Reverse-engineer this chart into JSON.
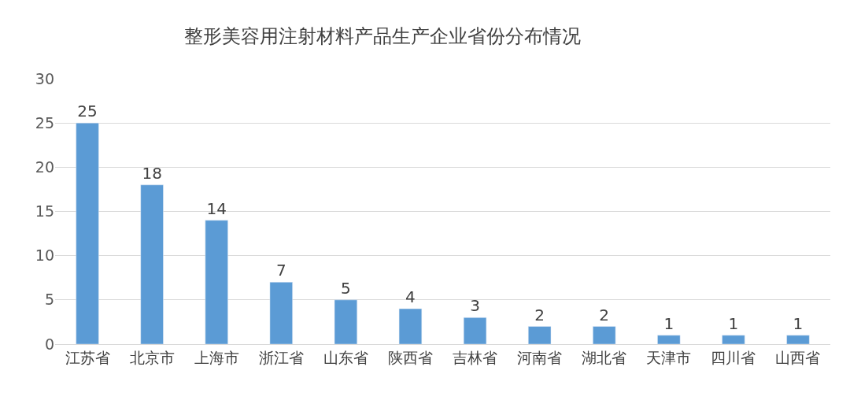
{
  "chart_data": {
    "type": "bar",
    "title": "整形美容用注射材料产品生产企业省份分布情况",
    "categories": [
      "江苏省",
      "北京市",
      "上海市",
      "浙江省",
      "山东省",
      "陕西省",
      "吉林省",
      "河南省",
      "湖北省",
      "天津市",
      "四川省",
      "山西省"
    ],
    "values": [
      25,
      18,
      14,
      7,
      5,
      4,
      3,
      2,
      2,
      1,
      1,
      1
    ],
    "color": "#5b9bd5",
    "ylim": [
      0,
      30
    ],
    "yticks": [
      0,
      5,
      10,
      15,
      20,
      25,
      30
    ],
    "grid": "y",
    "data_labels": true,
    "legend": false
  }
}
